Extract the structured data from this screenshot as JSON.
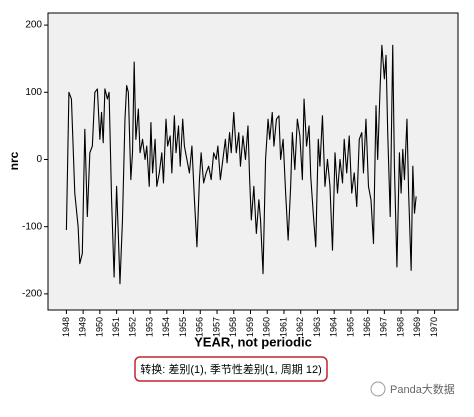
{
  "chart_data": {
    "type": "line",
    "x_label": "YEAR, not periodic",
    "y_label": "nrc",
    "annotation": "转换: 差别(1), 季节性差别(1, 周期 12)",
    "watermark": "Panda大数据",
    "color": "#000000",
    "background": "#f0f0f0",
    "xlim": [
      1946.9,
      1971.4
    ],
    "xticks": [
      1948,
      1949,
      1950,
      1951,
      1952,
      1953,
      1954,
      1955,
      1956,
      1957,
      1958,
      1959,
      1960,
      1961,
      1962,
      1963,
      1964,
      1965,
      1966,
      1967,
      1968,
      1969,
      1970
    ],
    "ylim": [
      -224,
      218
    ],
    "yticks": [
      -200,
      -100,
      0,
      100,
      200
    ],
    "x": [
      1948.0,
      1948.15,
      1948.3,
      1948.5,
      1948.7,
      1948.8,
      1948.95,
      1949.1,
      1949.25,
      1949.4,
      1949.55,
      1949.7,
      1949.85,
      1950.0,
      1950.1,
      1950.2,
      1950.3,
      1950.45,
      1950.55,
      1950.7,
      1950.85,
      1951.0,
      1951.1,
      1951.2,
      1951.35,
      1951.5,
      1951.6,
      1951.7,
      1951.85,
      1951.95,
      1952.05,
      1952.15,
      1952.3,
      1952.4,
      1952.55,
      1952.7,
      1952.8,
      1952.95,
      1953.05,
      1953.15,
      1953.3,
      1953.4,
      1953.55,
      1953.7,
      1953.8,
      1953.95,
      1954.05,
      1954.2,
      1954.3,
      1954.45,
      1954.55,
      1954.7,
      1954.8,
      1954.95,
      1955.05,
      1955.2,
      1955.35,
      1955.5,
      1955.65,
      1955.8,
      1955.95,
      1956.05,
      1956.2,
      1956.35,
      1956.5,
      1956.65,
      1956.8,
      1956.95,
      1957.05,
      1957.2,
      1957.35,
      1957.5,
      1957.6,
      1957.75,
      1957.85,
      1958.0,
      1958.15,
      1958.3,
      1958.4,
      1958.55,
      1958.7,
      1958.85,
      1958.95,
      1959.05,
      1959.2,
      1959.35,
      1959.5,
      1959.6,
      1959.75,
      1959.9,
      1960.05,
      1960.15,
      1960.3,
      1960.4,
      1960.55,
      1960.7,
      1960.8,
      1960.95,
      1961.1,
      1961.25,
      1961.4,
      1961.5,
      1961.65,
      1961.8,
      1961.95,
      1962.1,
      1962.2,
      1962.35,
      1962.5,
      1962.6,
      1962.75,
      1962.9,
      1963.05,
      1963.15,
      1963.3,
      1963.45,
      1963.6,
      1963.75,
      1963.9,
      1964.05,
      1964.2,
      1964.35,
      1964.5,
      1964.6,
      1964.75,
      1964.9,
      1965.05,
      1965.2,
      1965.35,
      1965.5,
      1965.65,
      1965.75,
      1965.9,
      1966.05,
      1966.2,
      1966.35,
      1966.5,
      1966.6,
      1966.75,
      1966.85,
      1967.0,
      1967.1,
      1967.2,
      1967.35,
      1967.5,
      1967.6,
      1967.75,
      1967.9,
      1968.0,
      1968.1,
      1968.2,
      1968.35,
      1968.45,
      1968.6,
      1968.7,
      1968.8,
      1968.9
    ],
    "values": [
      -105,
      100,
      90,
      -50,
      -100,
      -155,
      -140,
      45,
      -85,
      10,
      20,
      100,
      105,
      30,
      70,
      25,
      105,
      90,
      100,
      -60,
      -175,
      -40,
      -110,
      -185,
      -90,
      60,
      110,
      100,
      -30,
      10,
      145,
      30,
      75,
      10,
      30,
      0,
      20,
      -40,
      55,
      -20,
      30,
      -40,
      -20,
      10,
      -35,
      60,
      20,
      35,
      -20,
      65,
      10,
      50,
      -10,
      60,
      20,
      0,
      -20,
      20,
      -60,
      -130,
      -30,
      10,
      -35,
      -20,
      -10,
      -30,
      10,
      0,
      20,
      -30,
      0,
      30,
      -5,
      40,
      10,
      70,
      10,
      40,
      -10,
      35,
      0,
      50,
      -30,
      -90,
      -40,
      -110,
      -60,
      -90,
      -170,
      0,
      60,
      30,
      70,
      20,
      60,
      65,
      0,
      30,
      -50,
      -120,
      -40,
      40,
      -15,
      60,
      35,
      -30,
      90,
      20,
      50,
      -25,
      -80,
      -130,
      30,
      -10,
      65,
      -40,
      0,
      -40,
      -135,
      10,
      -50,
      0,
      -35,
      30,
      -20,
      35,
      -50,
      -20,
      -70,
      30,
      40,
      -20,
      60,
      -40,
      -60,
      -125,
      80,
      0,
      110,
      170,
      120,
      155,
      40,
      -85,
      170,
      -10,
      -160,
      10,
      -50,
      15,
      -30,
      60,
      -50,
      -165,
      -10,
      -80,
      -55
    ]
  }
}
